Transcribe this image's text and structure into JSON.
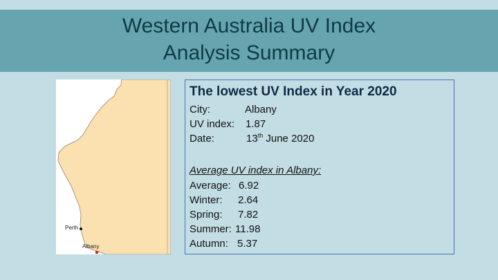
{
  "slide": {
    "title_line1": "Western Australia UV Index",
    "title_line2": "Analysis Summary"
  },
  "map": {
    "labels": {
      "perth": "Perth",
      "albany": "Albany"
    },
    "colors": {
      "land": "#fbe1b0",
      "coast": "#999999",
      "albany_dot": "#e0221a",
      "perth_dot": "#111111"
    }
  },
  "lowest": {
    "heading": "The lowest UV Index in Year 2020",
    "city_label": "City:",
    "city_value": "Albany",
    "uv_label": "UV index:",
    "uv_value": "1.87",
    "date_label": "Date:",
    "date_day": "13",
    "date_suffix": "th",
    "date_rest": " June 2020"
  },
  "average": {
    "heading": "Average UV index in Albany:",
    "items": [
      {
        "label": "Average:",
        "value": "6.92"
      },
      {
        "label": "Winter:",
        "value": "2.64"
      },
      {
        "label": "Spring:",
        "value": "7.82"
      },
      {
        "label": "Summer:",
        "value": "11.98"
      },
      {
        "label": "Autumn:",
        "value": "5.37"
      }
    ]
  }
}
